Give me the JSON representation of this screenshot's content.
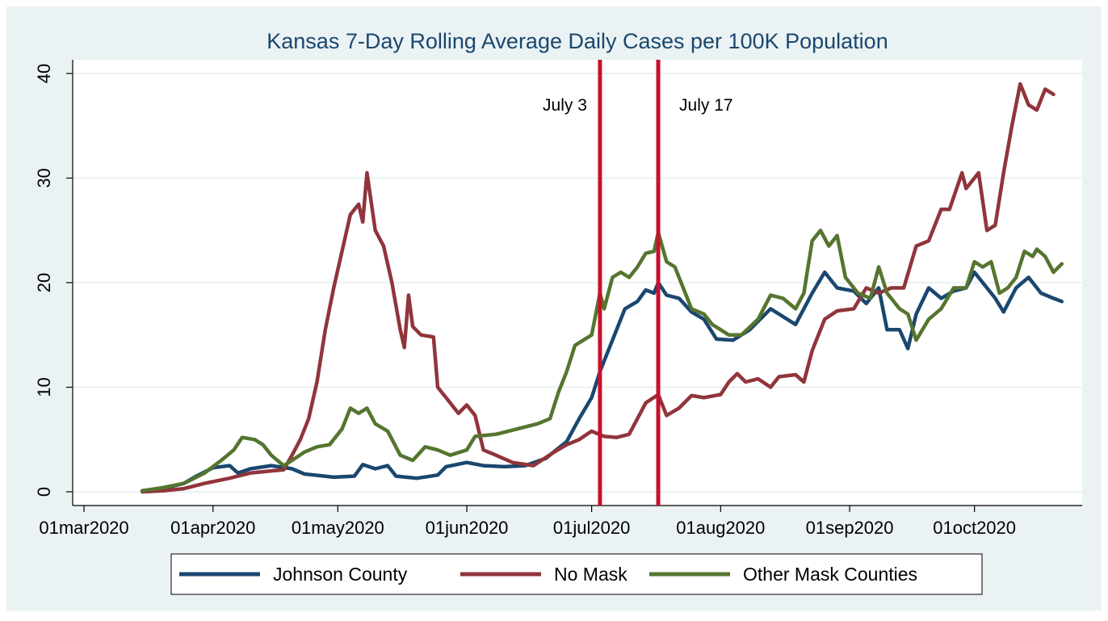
{
  "chart_data": {
    "type": "line",
    "title": "Kansas 7-Day Rolling Average Daily Cases per 100K Population",
    "xlabel": "",
    "ylabel": "",
    "ylim": [
      0,
      40
    ],
    "yticks": [
      0,
      10,
      20,
      30,
      40
    ],
    "xlim": [
      "2020-03-01",
      "2020-10-23"
    ],
    "xticks": [
      {
        "date": "2020-03-01",
        "label": "01mar2020"
      },
      {
        "date": "2020-04-01",
        "label": "01apr2020"
      },
      {
        "date": "2020-05-01",
        "label": "01may2020"
      },
      {
        "date": "2020-06-01",
        "label": "01jun2020"
      },
      {
        "date": "2020-07-01",
        "label": "01jul2020"
      },
      {
        "date": "2020-08-01",
        "label": "01aug2020"
      },
      {
        "date": "2020-09-01",
        "label": "01sep2020"
      },
      {
        "date": "2020-10-01",
        "label": "01oct2020"
      }
    ],
    "grid": true,
    "legend_position": "bottom",
    "reference_lines": [
      {
        "date": "2020-07-03",
        "label": "July 3",
        "color": "#c8102e"
      },
      {
        "date": "2020-07-17",
        "label": "July 17",
        "color": "#c8102e"
      }
    ],
    "series": [
      {
        "name": "Johnson County",
        "color": "#1a476f",
        "points": [
          [
            "2020-03-15",
            0.1
          ],
          [
            "2020-03-20",
            0.3
          ],
          [
            "2020-03-25",
            0.8
          ],
          [
            "2020-03-28",
            1.5
          ],
          [
            "2020-04-01",
            2.3
          ],
          [
            "2020-04-05",
            2.5
          ],
          [
            "2020-04-07",
            1.8
          ],
          [
            "2020-04-10",
            2.2
          ],
          [
            "2020-04-15",
            2.5
          ],
          [
            "2020-04-20",
            2.2
          ],
          [
            "2020-04-23",
            1.7
          ],
          [
            "2020-04-30",
            1.4
          ],
          [
            "2020-05-05",
            1.5
          ],
          [
            "2020-05-07",
            2.6
          ],
          [
            "2020-05-10",
            2.2
          ],
          [
            "2020-05-13",
            2.5
          ],
          [
            "2020-05-15",
            1.5
          ],
          [
            "2020-05-20",
            1.3
          ],
          [
            "2020-05-25",
            1.6
          ],
          [
            "2020-05-27",
            2.4
          ],
          [
            "2020-06-01",
            2.8
          ],
          [
            "2020-06-05",
            2.5
          ],
          [
            "2020-06-10",
            2.4
          ],
          [
            "2020-06-15",
            2.5
          ],
          [
            "2020-06-20",
            3.2
          ],
          [
            "2020-06-25",
            4.8
          ],
          [
            "2020-06-28",
            7.0
          ],
          [
            "2020-07-01",
            9.0
          ],
          [
            "2020-07-03",
            11.5
          ],
          [
            "2020-07-06",
            14.5
          ],
          [
            "2020-07-09",
            17.5
          ],
          [
            "2020-07-12",
            18.2
          ],
          [
            "2020-07-14",
            19.3
          ],
          [
            "2020-07-16",
            19.0
          ],
          [
            "2020-07-17",
            20.0
          ],
          [
            "2020-07-19",
            18.8
          ],
          [
            "2020-07-22",
            18.5
          ],
          [
            "2020-07-25",
            17.2
          ],
          [
            "2020-07-28",
            16.5
          ],
          [
            "2020-07-31",
            14.6
          ],
          [
            "2020-08-04",
            14.5
          ],
          [
            "2020-08-08",
            15.5
          ],
          [
            "2020-08-13",
            17.5
          ],
          [
            "2020-08-19",
            16.0
          ],
          [
            "2020-08-23",
            19.0
          ],
          [
            "2020-08-26",
            21.0
          ],
          [
            "2020-08-29",
            19.5
          ],
          [
            "2020-09-02",
            19.2
          ],
          [
            "2020-09-05",
            18.0
          ],
          [
            "2020-09-08",
            19.5
          ],
          [
            "2020-09-10",
            15.5
          ],
          [
            "2020-09-13",
            15.5
          ],
          [
            "2020-09-15",
            13.7
          ],
          [
            "2020-09-17",
            17.0
          ],
          [
            "2020-09-20",
            19.5
          ],
          [
            "2020-09-23",
            18.5
          ],
          [
            "2020-09-26",
            19.2
          ],
          [
            "2020-09-29",
            19.5
          ],
          [
            "2020-10-01",
            21.0
          ],
          [
            "2020-10-04",
            19.5
          ],
          [
            "2020-10-06",
            18.5
          ],
          [
            "2020-10-08",
            17.2
          ],
          [
            "2020-10-11",
            19.5
          ],
          [
            "2020-10-14",
            20.5
          ],
          [
            "2020-10-17",
            19.0
          ],
          [
            "2020-10-20",
            18.5
          ],
          [
            "2020-10-22",
            18.2
          ]
        ]
      },
      {
        "name": "No Mask",
        "color": "#90353b",
        "points": [
          [
            "2020-03-15",
            0.0
          ],
          [
            "2020-03-20",
            0.1
          ],
          [
            "2020-03-25",
            0.3
          ],
          [
            "2020-03-30",
            0.8
          ],
          [
            "2020-04-05",
            1.3
          ],
          [
            "2020-04-10",
            1.8
          ],
          [
            "2020-04-15",
            2.0
          ],
          [
            "2020-04-18",
            2.1
          ],
          [
            "2020-04-20",
            3.5
          ],
          [
            "2020-04-22",
            5.0
          ],
          [
            "2020-04-24",
            7.0
          ],
          [
            "2020-04-26",
            10.5
          ],
          [
            "2020-04-28",
            15.5
          ],
          [
            "2020-04-30",
            19.5
          ],
          [
            "2020-05-02",
            23.0
          ],
          [
            "2020-05-04",
            26.5
          ],
          [
            "2020-05-06",
            27.5
          ],
          [
            "2020-05-07",
            25.8
          ],
          [
            "2020-05-08",
            30.5
          ],
          [
            "2020-05-10",
            25.0
          ],
          [
            "2020-05-12",
            23.5
          ],
          [
            "2020-05-14",
            20.0
          ],
          [
            "2020-05-16",
            15.5
          ],
          [
            "2020-05-17",
            13.8
          ],
          [
            "2020-05-18",
            18.8
          ],
          [
            "2020-05-19",
            15.8
          ],
          [
            "2020-05-21",
            15.0
          ],
          [
            "2020-05-24",
            14.8
          ],
          [
            "2020-05-25",
            10.0
          ],
          [
            "2020-05-27",
            9.0
          ],
          [
            "2020-05-30",
            7.5
          ],
          [
            "2020-06-01",
            8.3
          ],
          [
            "2020-06-03",
            7.3
          ],
          [
            "2020-06-05",
            4.0
          ],
          [
            "2020-06-08",
            3.5
          ],
          [
            "2020-06-12",
            2.8
          ],
          [
            "2020-06-17",
            2.5
          ],
          [
            "2020-06-22",
            3.8
          ],
          [
            "2020-06-25",
            4.5
          ],
          [
            "2020-06-28",
            5.0
          ],
          [
            "2020-07-01",
            5.8
          ],
          [
            "2020-07-04",
            5.3
          ],
          [
            "2020-07-07",
            5.2
          ],
          [
            "2020-07-10",
            5.5
          ],
          [
            "2020-07-12",
            7.0
          ],
          [
            "2020-07-14",
            8.5
          ],
          [
            "2020-07-17",
            9.3
          ],
          [
            "2020-07-19",
            7.3
          ],
          [
            "2020-07-22",
            8.0
          ],
          [
            "2020-07-25",
            9.2
          ],
          [
            "2020-07-28",
            9.0
          ],
          [
            "2020-08-01",
            9.3
          ],
          [
            "2020-08-03",
            10.5
          ],
          [
            "2020-08-05",
            11.3
          ],
          [
            "2020-08-07",
            10.5
          ],
          [
            "2020-08-10",
            10.8
          ],
          [
            "2020-08-13",
            10.0
          ],
          [
            "2020-08-15",
            11.0
          ],
          [
            "2020-08-19",
            11.2
          ],
          [
            "2020-08-21",
            10.5
          ],
          [
            "2020-08-23",
            13.5
          ],
          [
            "2020-08-26",
            16.5
          ],
          [
            "2020-08-29",
            17.3
          ],
          [
            "2020-09-02",
            17.5
          ],
          [
            "2020-09-05",
            19.5
          ],
          [
            "2020-09-08",
            19.0
          ],
          [
            "2020-09-11",
            19.5
          ],
          [
            "2020-09-14",
            19.5
          ],
          [
            "2020-09-17",
            23.5
          ],
          [
            "2020-09-20",
            24.0
          ],
          [
            "2020-09-23",
            27.0
          ],
          [
            "2020-09-25",
            27.0
          ],
          [
            "2020-09-28",
            30.5
          ],
          [
            "2020-09-29",
            29.0
          ],
          [
            "2020-10-02",
            30.5
          ],
          [
            "2020-10-04",
            25.0
          ],
          [
            "2020-10-06",
            25.5
          ],
          [
            "2020-10-08",
            30.5
          ],
          [
            "2020-10-10",
            35.0
          ],
          [
            "2020-10-12",
            39.0
          ],
          [
            "2020-10-14",
            37.0
          ],
          [
            "2020-10-16",
            36.5
          ],
          [
            "2020-10-18",
            38.5
          ],
          [
            "2020-10-20",
            38.0
          ]
        ]
      },
      {
        "name": "Other Mask Counties",
        "color": "#55752f",
        "points": [
          [
            "2020-03-15",
            0.1
          ],
          [
            "2020-03-20",
            0.4
          ],
          [
            "2020-03-25",
            0.8
          ],
          [
            "2020-03-30",
            1.8
          ],
          [
            "2020-04-03",
            3.0
          ],
          [
            "2020-04-06",
            4.0
          ],
          [
            "2020-04-08",
            5.2
          ],
          [
            "2020-04-11",
            5.0
          ],
          [
            "2020-04-13",
            4.5
          ],
          [
            "2020-04-15",
            3.5
          ],
          [
            "2020-04-18",
            2.5
          ],
          [
            "2020-04-20",
            3.0
          ],
          [
            "2020-04-23",
            3.8
          ],
          [
            "2020-04-26",
            4.3
          ],
          [
            "2020-04-29",
            4.5
          ],
          [
            "2020-05-02",
            6.0
          ],
          [
            "2020-05-04",
            8.0
          ],
          [
            "2020-05-06",
            7.5
          ],
          [
            "2020-05-08",
            8.0
          ],
          [
            "2020-05-10",
            6.5
          ],
          [
            "2020-05-13",
            5.8
          ],
          [
            "2020-05-16",
            3.5
          ],
          [
            "2020-05-19",
            3.0
          ],
          [
            "2020-05-22",
            4.3
          ],
          [
            "2020-05-25",
            4.0
          ],
          [
            "2020-05-28",
            3.5
          ],
          [
            "2020-06-01",
            4.0
          ],
          [
            "2020-06-03",
            5.3
          ],
          [
            "2020-06-08",
            5.5
          ],
          [
            "2020-06-13",
            6.0
          ],
          [
            "2020-06-18",
            6.5
          ],
          [
            "2020-06-21",
            7.0
          ],
          [
            "2020-06-23",
            9.5
          ],
          [
            "2020-06-25",
            11.5
          ],
          [
            "2020-06-27",
            14.0
          ],
          [
            "2020-07-01",
            15.0
          ],
          [
            "2020-07-03",
            19.0
          ],
          [
            "2020-07-04",
            17.5
          ],
          [
            "2020-07-06",
            20.5
          ],
          [
            "2020-07-08",
            21.0
          ],
          [
            "2020-07-10",
            20.5
          ],
          [
            "2020-07-12",
            21.5
          ],
          [
            "2020-07-14",
            22.8
          ],
          [
            "2020-07-16",
            23.0
          ],
          [
            "2020-07-17",
            24.8
          ],
          [
            "2020-07-19",
            22.0
          ],
          [
            "2020-07-21",
            21.5
          ],
          [
            "2020-07-23",
            19.5
          ],
          [
            "2020-07-25",
            17.5
          ],
          [
            "2020-07-28",
            17.0
          ],
          [
            "2020-07-30",
            16.0
          ],
          [
            "2020-08-03",
            15.0
          ],
          [
            "2020-08-06",
            15.0
          ],
          [
            "2020-08-10",
            16.5
          ],
          [
            "2020-08-13",
            18.8
          ],
          [
            "2020-08-16",
            18.5
          ],
          [
            "2020-08-19",
            17.5
          ],
          [
            "2020-08-21",
            19.0
          ],
          [
            "2020-08-23",
            24.0
          ],
          [
            "2020-08-25",
            25.0
          ],
          [
            "2020-08-27",
            23.5
          ],
          [
            "2020-08-29",
            24.5
          ],
          [
            "2020-08-31",
            20.5
          ],
          [
            "2020-09-03",
            19.0
          ],
          [
            "2020-09-06",
            18.5
          ],
          [
            "2020-09-08",
            21.5
          ],
          [
            "2020-09-10",
            19.0
          ],
          [
            "2020-09-13",
            17.5
          ],
          [
            "2020-09-15",
            17.0
          ],
          [
            "2020-09-17",
            14.5
          ],
          [
            "2020-09-20",
            16.5
          ],
          [
            "2020-09-23",
            17.5
          ],
          [
            "2020-09-26",
            19.5
          ],
          [
            "2020-09-29",
            19.5
          ],
          [
            "2020-10-01",
            22.0
          ],
          [
            "2020-10-03",
            21.5
          ],
          [
            "2020-10-05",
            22.0
          ],
          [
            "2020-10-07",
            19.0
          ],
          [
            "2020-10-09",
            19.5
          ],
          [
            "2020-10-11",
            20.5
          ],
          [
            "2020-10-13",
            23.0
          ],
          [
            "2020-10-15",
            22.5
          ],
          [
            "2020-10-16",
            23.2
          ],
          [
            "2020-10-18",
            22.5
          ],
          [
            "2020-10-20",
            21.0
          ],
          [
            "2020-10-22",
            21.8
          ]
        ]
      }
    ]
  }
}
